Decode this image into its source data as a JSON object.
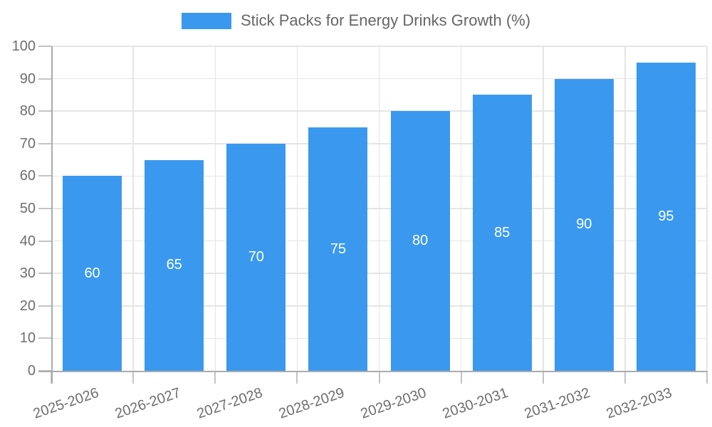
{
  "chart_data": {
    "type": "bar",
    "title": "Stick Packs for Energy Drinks Growth (%)",
    "legend_entries": [
      "Stick Packs for Energy Drinks Growth (%)"
    ],
    "legend_position": "top-center",
    "categories": [
      "2025-2026",
      "2026-2027",
      "2027-2028",
      "2028-2029",
      "2029-2030",
      "2030-2031",
      "2031-2032",
      "2032-2033"
    ],
    "values": [
      60,
      65,
      70,
      75,
      80,
      85,
      90,
      95
    ],
    "bar_value_labels": [
      60,
      65,
      70,
      75,
      80,
      85,
      90,
      95
    ],
    "xlabel": "",
    "ylabel": "",
    "ylim": [
      0,
      100
    ],
    "yticks": [
      0,
      10,
      20,
      30,
      40,
      50,
      60,
      70,
      80,
      90,
      100
    ],
    "grid": true,
    "x_label_rotation_deg": -19
  },
  "colors": {
    "bar": "#3A99EE",
    "grid": "#E5E5E5",
    "axis": "#ABABAB",
    "tick": "#C4C4C4",
    "axis_text": "#6E6E6E",
    "title_text": "#666666",
    "bar_label_text": "#FFFFFF",
    "background": "#FFFFFF"
  }
}
